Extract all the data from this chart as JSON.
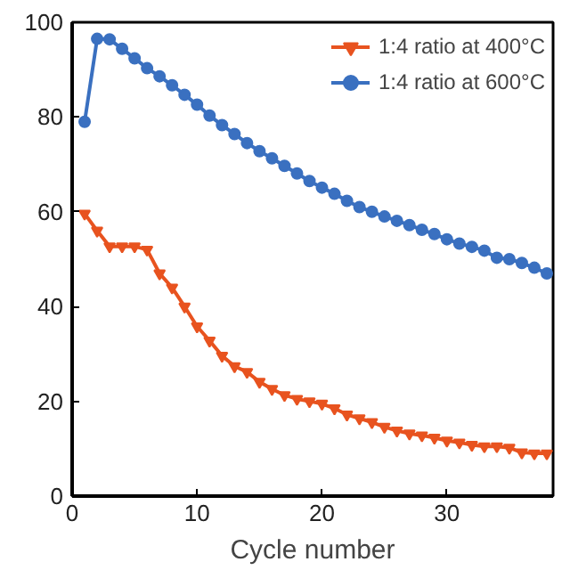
{
  "chart_data": {
    "type": "line",
    "xlabel": "Cycle number",
    "xlim": [
      0,
      38.5
    ],
    "ylim": [
      0,
      100
    ],
    "xticks": [
      0,
      10,
      20,
      30
    ],
    "yticks": [
      0,
      20,
      40,
      60,
      80,
      100
    ],
    "grid": false,
    "legend": "top right",
    "line_style": "solid",
    "x": [
      1,
      2,
      3,
      4,
      5,
      6,
      7,
      8,
      9,
      10,
      11,
      12,
      13,
      14,
      15,
      16,
      17,
      18,
      19,
      20,
      21,
      22,
      23,
      24,
      25,
      26,
      27,
      28,
      29,
      30,
      31,
      32,
      33,
      34,
      35,
      36,
      37,
      38
    ],
    "series": [
      {
        "name": "1:4 ratio at 400°C",
        "color": "#e8531f",
        "marker": "triangle",
        "values": [
          59.6,
          56,
          52.7,
          52.7,
          52.7,
          52,
          47,
          44,
          40,
          35.8,
          32.8,
          29.6,
          27.4,
          26.2,
          24.1,
          22.6,
          21.3,
          20.5,
          20,
          19.5,
          18.5,
          17.2,
          16.4,
          15.6,
          14.6,
          13.8,
          13.2,
          12.8,
          12.3,
          11.7,
          11.3,
          10.8,
          10.5,
          10.5,
          10.2,
          9.2,
          9,
          9
        ]
      },
      {
        "name": "1:4 ratio at 600°C",
        "color": "#3a70c0",
        "marker": "circle",
        "values": [
          79,
          96.5,
          96.4,
          94.4,
          92.4,
          90.3,
          88.6,
          86.7,
          84.7,
          82.6,
          80.3,
          78.3,
          76.4,
          74.5,
          72.8,
          71.3,
          69.7,
          68.1,
          66.5,
          65.1,
          63.8,
          62.3,
          61,
          60,
          59,
          58.1,
          57.2,
          56.2,
          55.3,
          54.2,
          53.3,
          52.6,
          51.8,
          50.3,
          50,
          49.2,
          48.2,
          47
        ]
      }
    ]
  }
}
